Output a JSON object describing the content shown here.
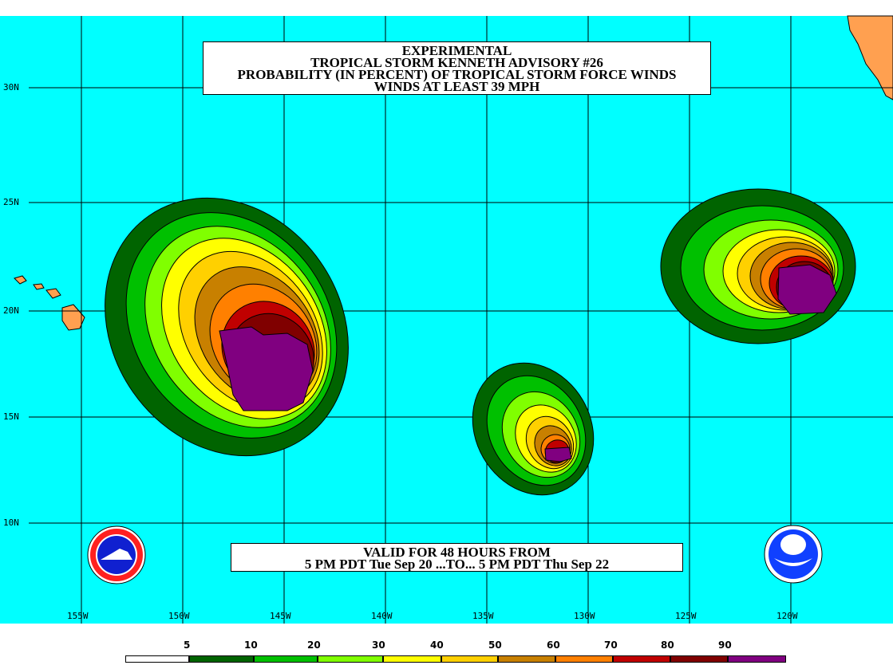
{
  "title": {
    "line1": "EXPERIMENTAL",
    "line2": "TROPICAL STORM KENNETH ADVISORY #26",
    "line3": "PROBABILITY (IN PERCENT) OF TROPICAL STORM FORCE WINDS",
    "line4": "WINDS AT LEAST 39 MPH"
  },
  "valid": {
    "line1": "VALID FOR 48 HOURS FROM",
    "line2": "5 PM PDT Tue Sep 20 ...TO... 5 PM PDT Thu Sep 22"
  },
  "lat_labels": [
    "30N",
    "25N",
    "20N",
    "15N",
    "10N"
  ],
  "lon_labels": [
    "155W",
    "150W",
    "145W",
    "140W",
    "135W",
    "130W",
    "125W",
    "120W"
  ],
  "legend": {
    "labels": [
      "5",
      "10",
      "20",
      "30",
      "40",
      "50",
      "60",
      "70",
      "80",
      "90"
    ],
    "colors": [
      "#ffffff",
      "#006400",
      "#00c000",
      "#80ff00",
      "#ffff00",
      "#ffd000",
      "#c88000",
      "#ff8000",
      "#c00000",
      "#800000",
      "#800080"
    ]
  },
  "colors": {
    "ocean": "#00ffff",
    "land": "#ffa050",
    "grid": "#000000"
  },
  "logos": {
    "left": "National Weather Service",
    "right": "NOAA"
  }
}
